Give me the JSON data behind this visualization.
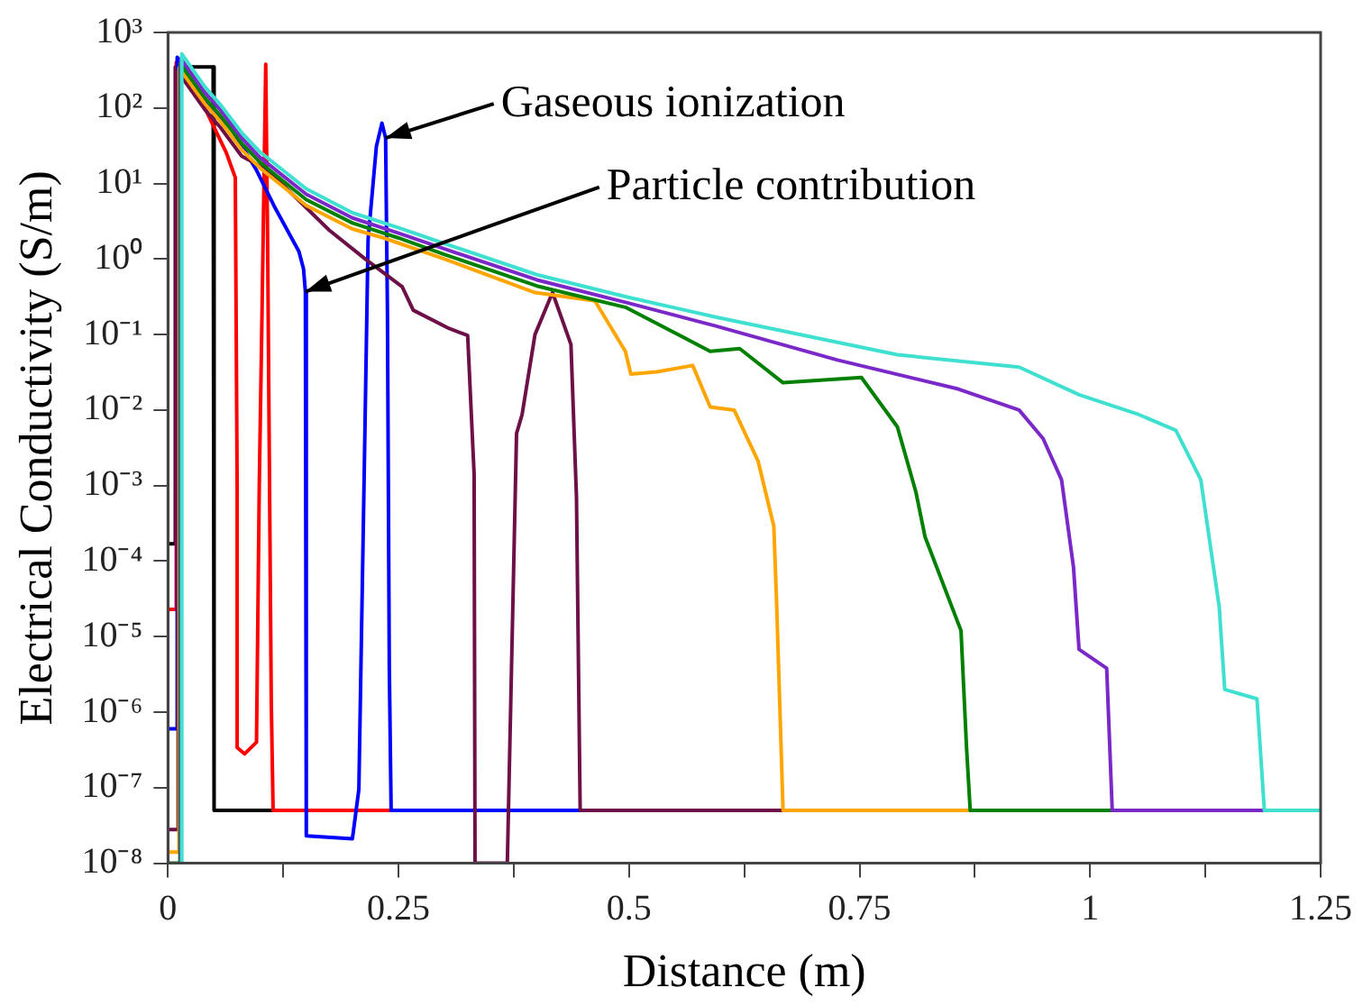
{
  "chart_data": {
    "type": "line",
    "xlabel": "Distance (m)",
    "ylabel": "Electrical Conductivity (S/m)",
    "log": "y",
    "grid": false,
    "legend": false,
    "marker": "none",
    "line_style": "solid",
    "xlim": [
      0,
      1.25
    ],
    "xticks": [
      0,
      {
        "value": 0.125,
        "label": null
      },
      0.25,
      {
        "value": 0.375,
        "label": null
      },
      0.5,
      {
        "value": 0.625,
        "label": null
      },
      0.75,
      {
        "value": 0.875,
        "label": null
      },
      1,
      {
        "value": 1.125,
        "label": null
      },
      1.25
    ],
    "ylim": [
      1e-08,
      1000
    ],
    "yticks": [
      {
        "value": 1000,
        "label": "10³"
      },
      {
        "value": 100,
        "label": "10²"
      },
      {
        "value": 10,
        "label": "10¹"
      },
      {
        "value": 1,
        "label": "10⁰"
      },
      {
        "value": 0.1,
        "label": "10⁻¹"
      },
      {
        "value": 0.01,
        "label": "10⁻²"
      },
      {
        "value": 0.001,
        "label": "10⁻³"
      },
      {
        "value": 0.0001,
        "label": "10⁻⁴"
      },
      {
        "value": 1e-05,
        "label": "10⁻⁵"
      },
      {
        "value": 1e-06,
        "label": "10⁻⁶"
      },
      {
        "value": 1e-07,
        "label": "10⁻⁷"
      },
      {
        "value": 1e-08,
        "label": "10⁻⁸"
      }
    ],
    "annotations": [
      {
        "text": "Gaseous ionization",
        "x": 0.236,
        "y": 40
      },
      {
        "text": "Particle contribution",
        "x": 0.149,
        "y": 0.37
      }
    ],
    "series": [
      {
        "color": "#000000",
        "x": [
          0,
          0.008,
          0.008,
          0.049,
          0.05,
          0.114
        ],
        "values": [
          0.00017,
          0.00017,
          350,
          350,
          5e-08,
          5e-08
        ]
      },
      {
        "color": "#ff0000",
        "x": [
          0,
          0.009,
          0.009,
          0.04,
          0.063,
          0.073,
          0.075,
          0.075,
          0.083,
          0.096,
          0.099,
          0.102,
          0.106,
          0.108,
          0.112,
          0.114,
          0.242
        ],
        "values": [
          2.3e-05,
          2.3e-05,
          400,
          100,
          26,
          12,
          0.001,
          3.4e-07,
          2.8e-07,
          4e-07,
          0.001,
          0.2,
          380,
          2,
          1.4e-06,
          5e-08,
          5e-08
        ]
      },
      {
        "color": "#0000ff",
        "x": [
          0,
          0.01,
          0.01,
          0.04,
          0.069,
          0.096,
          0.116,
          0.142,
          0.147,
          0.149,
          0.15,
          0.2,
          0.207,
          0.213,
          0.217,
          0.226,
          0.232,
          0.236,
          0.238,
          0.24,
          0.242,
          0.447
        ],
        "values": [
          6e-07,
          6e-07,
          470,
          125,
          53,
          15,
          4.8,
          1.26,
          0.74,
          0.37,
          2.3e-08,
          2.1e-08,
          9.5e-08,
          0.002,
          1.8,
          31,
          63,
          40,
          0.2,
          4e-06,
          5e-08,
          5e-08
        ]
      },
      {
        "color": "#6e1048",
        "x": [
          0,
          0.011,
          0.011,
          0.04,
          0.057,
          0.08,
          0.108,
          0.136,
          0.175,
          0.214,
          0.254,
          0.266,
          0.305,
          0.325,
          0.332,
          0.333,
          0.368,
          0.378,
          0.384,
          0.398,
          0.417,
          0.437,
          0.443,
          0.447,
          0.667
        ],
        "values": [
          2.8e-08,
          2.8e-08,
          300,
          95,
          55,
          23,
          15,
          7,
          2.4,
          1,
          0.43,
          0.21,
          0.12,
          0.097,
          0.0014,
          1e-08,
          1e-08,
          0.0049,
          0.0087,
          0.1,
          0.36,
          0.074,
          0.0007,
          5e-08,
          5e-08
        ]
      },
      {
        "color": "#ffa500",
        "x": [
          0,
          0.012,
          0.012,
          0.04,
          0.057,
          0.08,
          0.1,
          0.15,
          0.2,
          0.234,
          0.3,
          0.398,
          0.463,
          0.496,
          0.502,
          0.53,
          0.569,
          0.588,
          0.614,
          0.64,
          0.657,
          0.66,
          0.667,
          0.87
        ],
        "values": [
          1.4e-08,
          1.4e-08,
          340,
          114,
          66,
          28,
          16,
          5.1,
          2.5,
          1.9,
          1,
          0.36,
          0.28,
          0.06,
          0.03,
          0.032,
          0.039,
          0.011,
          0.01,
          0.0021,
          0.00029,
          2.9e-05,
          5e-08,
          5e-08
        ]
      },
      {
        "color": "#008000",
        "x": [
          0,
          0.013,
          0.013,
          0.04,
          0.057,
          0.08,
          0.1,
          0.15,
          0.2,
          0.25,
          0.3,
          0.4,
          0.496,
          0.588,
          0.62,
          0.667,
          0.752,
          0.791,
          0.811,
          0.821,
          0.86,
          0.866,
          0.87,
          1.024
        ],
        "values": [
          1e-08,
          1e-08,
          390,
          137,
          79,
          34,
          19,
          6.1,
          3,
          1.9,
          1.15,
          0.44,
          0.23,
          0.06,
          0.065,
          0.023,
          0.027,
          0.006,
          0.00083,
          0.00021,
          1.2e-05,
          3.4e-07,
          5e-08,
          5e-08
        ]
      },
      {
        "color": "#7b28c8",
        "x": [
          0.014,
          0.014,
          0.04,
          0.057,
          0.08,
          0.1,
          0.15,
          0.2,
          0.25,
          0.3,
          0.4,
          0.5,
          0.594,
          0.726,
          0.857,
          0.923,
          0.949,
          0.969,
          0.982,
          0.988,
          1.018,
          1.024,
          1.189
        ],
        "values": [
          1e-08,
          450,
          160,
          94,
          40,
          22,
          7.2,
          3.5,
          2.2,
          1.36,
          0.53,
          0.26,
          0.13,
          0.046,
          0.019,
          0.01,
          0.0042,
          0.0012,
          8.3e-05,
          6.8e-06,
          3.8e-06,
          5e-08,
          5e-08
        ]
      },
      {
        "color": "#40e0d0",
        "x": [
          0.015,
          0.015,
          0.04,
          0.057,
          0.08,
          0.1,
          0.15,
          0.2,
          0.25,
          0.3,
          0.4,
          0.5,
          0.594,
          0.791,
          0.923,
          0.988,
          1.053,
          1.093,
          1.12,
          1.14,
          1.146,
          1.181,
          1.189,
          1.25
        ],
        "values": [
          1e-08,
          520,
          190,
          110,
          47,
          26,
          8.5,
          4.1,
          2.6,
          1.6,
          0.62,
          0.31,
          0.17,
          0.054,
          0.037,
          0.016,
          0.0087,
          0.0054,
          0.0012,
          2.5e-05,
          2e-06,
          1.5e-06,
          5e-08,
          5e-08
        ]
      }
    ]
  }
}
